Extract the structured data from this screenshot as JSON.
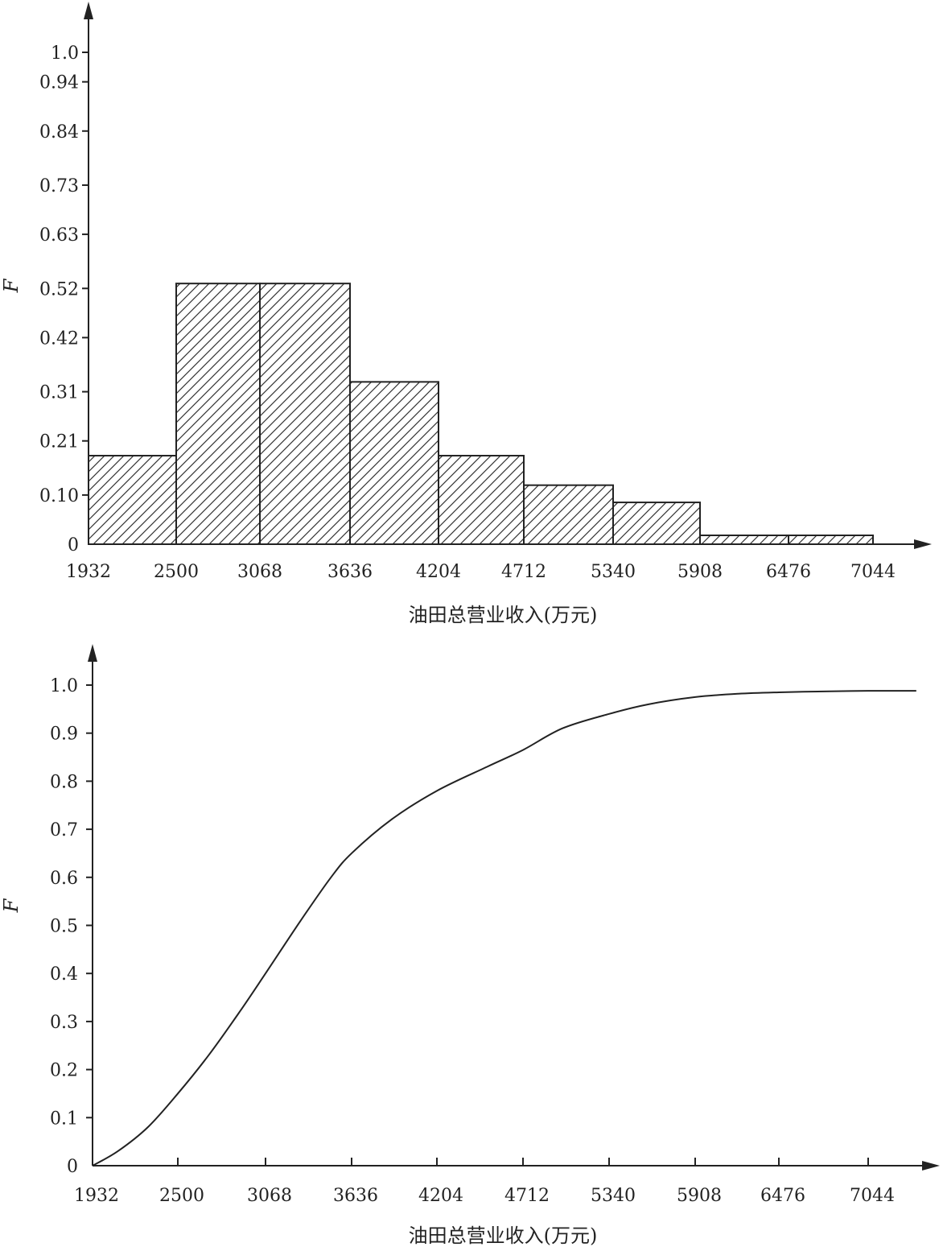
{
  "chart_data": [
    {
      "type": "bar",
      "ylabel": "F",
      "xlabel": "油田总营业收入(万元)",
      "x_ticks": [
        "1932",
        "2500",
        "3068",
        "3636",
        "4204",
        "4712",
        "5340",
        "5908",
        "6476",
        "7044"
      ],
      "y_ticks": [
        "0",
        "0.10",
        "0.21",
        "0.31",
        "0.42",
        "0.52",
        "0.63",
        "0.73",
        "0.84",
        "0.94",
        "1.0"
      ],
      "bins": [
        {
          "x0": 1932,
          "x1": 2500,
          "value": 0.18
        },
        {
          "x0": 2500,
          "x1": 3068,
          "value": 0.53
        },
        {
          "x0": 3068,
          "x1": 3636,
          "value": 0.53
        },
        {
          "x0": 3636,
          "x1": 4204,
          "value": 0.33
        },
        {
          "x0": 4204,
          "x1": 4712,
          "value": 0.18
        },
        {
          "x0": 4712,
          "x1": 5340,
          "value": 0.12
        },
        {
          "x0": 5340,
          "x1": 5908,
          "value": 0.085
        },
        {
          "x0": 5908,
          "x1": 6476,
          "value": 0.018
        },
        {
          "x0": 6476,
          "x1": 7044,
          "value": 0.018
        }
      ],
      "fill": "diagonal-hatch",
      "ylim": [
        0,
        1.0
      ],
      "grid": false
    },
    {
      "type": "line",
      "ylabel": "F",
      "xlabel": "油田总营业收入(万元)",
      "x_ticks": [
        "1932",
        "2500",
        "3068",
        "3636",
        "4204",
        "4712",
        "5340",
        "5908",
        "6476",
        "7044"
      ],
      "y_ticks": [
        "0",
        "0.1",
        "0.2",
        "0.3",
        "0.4",
        "0.5",
        "0.6",
        "0.7",
        "0.8",
        "0.9",
        "1.0"
      ],
      "series": [
        {
          "x": [
            1932,
            2100,
            2300,
            2500,
            2700,
            2900,
            3068,
            3300,
            3500,
            3636,
            3900,
            4204,
            4500,
            4712,
            5000,
            5340,
            5600,
            5908,
            6200,
            6476,
            6800,
            7044,
            7350
          ],
          "y": [
            0.0,
            0.03,
            0.08,
            0.15,
            0.23,
            0.32,
            0.4,
            0.51,
            0.6,
            0.65,
            0.72,
            0.78,
            0.83,
            0.865,
            0.91,
            0.94,
            0.96,
            0.975,
            0.982,
            0.985,
            0.987,
            0.988,
            0.988
          ]
        }
      ],
      "ylim": [
        0,
        1.0
      ],
      "grid": false
    }
  ]
}
